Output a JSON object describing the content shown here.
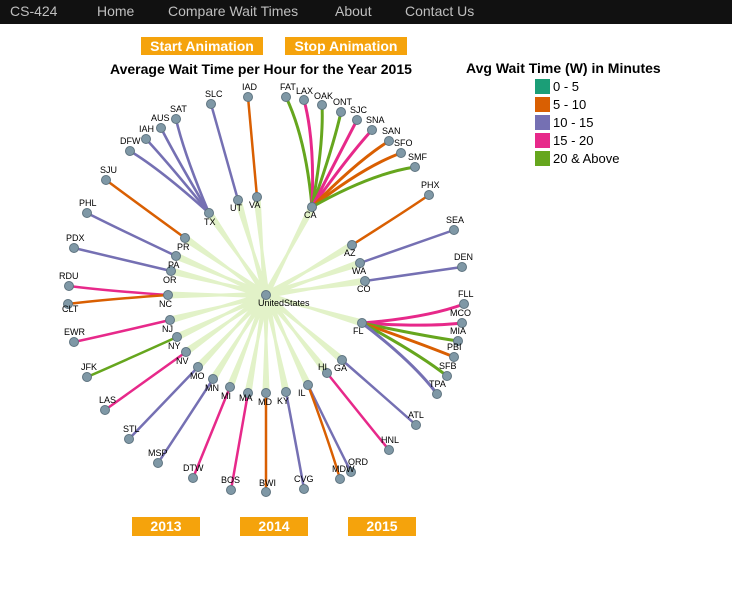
{
  "nav": {
    "brand": "CS-424",
    "links": [
      "Home",
      "Compare Wait Times",
      "About",
      "Contact Us"
    ]
  },
  "buttons": {
    "start": "Start Animation",
    "stop": "Stop Animation",
    "years": [
      "2013",
      "2014",
      "2015"
    ]
  },
  "title": "Average Wait Time per Hour for the Year 2015",
  "legend": {
    "title": "Avg Wait Time (W) in Minutes",
    "items": [
      {
        "label": "0 - 5",
        "color": "#1b9e77"
      },
      {
        "label": "5 - 10",
        "color": "#d95f02"
      },
      {
        "label": "10 - 15",
        "color": "#7570b3"
      },
      {
        "label": "15 - 20",
        "color": "#e7298a"
      },
      {
        "label": "20 & Above",
        "color": "#66a61e"
      }
    ]
  },
  "tree": {
    "root": "UnitedStates",
    "states": [
      {
        "name": "TX",
        "airports": [
          {
            "code": "SAT",
            "band": "10 - 15"
          },
          {
            "code": "AUS",
            "band": "10 - 15"
          },
          {
            "code": "IAH",
            "band": "10 - 15"
          },
          {
            "code": "DFW",
            "band": "10 - 15"
          }
        ]
      },
      {
        "name": "UT",
        "airports": [
          {
            "code": "SLC",
            "band": "10 - 15"
          }
        ]
      },
      {
        "name": "VA",
        "airports": [
          {
            "code": "IAD",
            "band": "5 - 10"
          }
        ]
      },
      {
        "name": "CA",
        "airports": [
          {
            "code": "FAT",
            "band": "20 & Above"
          },
          {
            "code": "LAX",
            "band": "15 - 20"
          },
          {
            "code": "OAK",
            "band": "20 & Above"
          },
          {
            "code": "ONT",
            "band": "20 & Above"
          },
          {
            "code": "SJC",
            "band": "15 - 20"
          },
          {
            "code": "SNA",
            "band": "15 - 20"
          },
          {
            "code": "SAN",
            "band": "5 - 10"
          },
          {
            "code": "SFO",
            "band": "5 - 10"
          },
          {
            "code": "SMF",
            "band": "20 & Above"
          }
        ]
      },
      {
        "name": "AZ",
        "airports": [
          {
            "code": "PHX",
            "band": "5 - 10"
          }
        ]
      },
      {
        "name": "WA",
        "airports": [
          {
            "code": "SEA",
            "band": "10 - 15"
          }
        ]
      },
      {
        "name": "CO",
        "airports": [
          {
            "code": "DEN",
            "band": "10 - 15"
          }
        ]
      },
      {
        "name": "FL",
        "airports": [
          {
            "code": "FLL",
            "band": "15 - 20"
          },
          {
            "code": "MCO",
            "band": "15 - 20"
          },
          {
            "code": "MIA",
            "band": "20 & Above"
          },
          {
            "code": "PBI",
            "band": "5 - 10"
          },
          {
            "code": "SFB",
            "band": "20 & Above"
          },
          {
            "code": "TPA",
            "band": "10 - 15"
          }
        ]
      },
      {
        "name": "GA",
        "airports": [
          {
            "code": "ATL",
            "band": "10 - 15"
          }
        ]
      },
      {
        "name": "HI",
        "airports": [
          {
            "code": "HNL",
            "band": "15 - 20"
          }
        ]
      },
      {
        "name": "IL",
        "airports": [
          {
            "code": "ORD",
            "band": "10 - 15"
          },
          {
            "code": "MDW",
            "band": "5 - 10"
          }
        ]
      },
      {
        "name": "KY",
        "airports": [
          {
            "code": "CVG",
            "band": "10 - 15"
          }
        ]
      },
      {
        "name": "MD",
        "airports": [
          {
            "code": "BWI",
            "band": "5 - 10"
          }
        ]
      },
      {
        "name": "MA",
        "airports": [
          {
            "code": "BOS",
            "band": "15 - 20"
          }
        ]
      },
      {
        "name": "MI",
        "airports": [
          {
            "code": "DTW",
            "band": "15 - 20"
          }
        ]
      },
      {
        "name": "MN",
        "airports": [
          {
            "code": "MSP",
            "band": "10 - 15"
          }
        ]
      },
      {
        "name": "MO",
        "airports": [
          {
            "code": "STL",
            "band": "10 - 15"
          }
        ]
      },
      {
        "name": "NV",
        "airports": [
          {
            "code": "LAS",
            "band": "15 - 20"
          }
        ]
      },
      {
        "name": "NY",
        "airports": [
          {
            "code": "JFK",
            "band": "20 & Above"
          }
        ]
      },
      {
        "name": "NJ",
        "airports": [
          {
            "code": "EWR",
            "band": "15 - 20"
          }
        ]
      },
      {
        "name": "NC",
        "airports": [
          {
            "code": "RDU",
            "band": "15 - 20"
          },
          {
            "code": "CLT",
            "band": "5 - 10"
          }
        ]
      },
      {
        "name": "OR",
        "airports": [
          {
            "code": "PDX",
            "band": "10 - 15"
          }
        ]
      },
      {
        "name": "PA",
        "airports": [
          {
            "code": "PHL",
            "band": "10 - 15"
          }
        ]
      },
      {
        "name": "PR",
        "airports": [
          {
            "code": "SJU",
            "band": "5 - 10"
          }
        ]
      }
    ]
  }
}
